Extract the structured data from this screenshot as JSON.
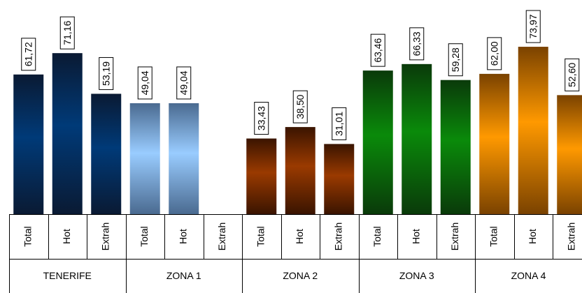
{
  "chart_data": {
    "type": "bar",
    "groups": [
      {
        "name": "TENERIFE",
        "color_dark": "#0a1a33",
        "color_light": "#003a78",
        "bars": [
          {
            "category": "Total",
            "value": 61.72,
            "label": "61,72"
          },
          {
            "category": "Hot",
            "value": 71.16,
            "label": "71,16"
          },
          {
            "category": "Extrah",
            "value": 53.19,
            "label": "53,19"
          }
        ]
      },
      {
        "name": "ZONA 1",
        "color_dark": "#4a6a90",
        "color_light": "#99ccff",
        "bars": [
          {
            "category": "Total",
            "value": 49.04,
            "label": "49,04"
          },
          {
            "category": "Hot",
            "value": 49.04,
            "label": "49,04"
          },
          {
            "category": "Extrah",
            "value": null,
            "label": ""
          }
        ]
      },
      {
        "name": "ZONA 2",
        "color_dark": "#3a1400",
        "color_light": "#9a3a00",
        "bars": [
          {
            "category": "Total",
            "value": 33.43,
            "label": "33,43"
          },
          {
            "category": "Hot",
            "value": 38.5,
            "label": "38,50"
          },
          {
            "category": "Extrah",
            "value": 31.01,
            "label": "31,01"
          }
        ]
      },
      {
        "name": "ZONA 3",
        "color_dark": "#0a3a0a",
        "color_light": "#0a8a0a",
        "bars": [
          {
            "category": "Total",
            "value": 63.46,
            "label": "63,46"
          },
          {
            "category": "Hot",
            "value": 66.33,
            "label": "66,33"
          },
          {
            "category": "Extrah",
            "value": 59.28,
            "label": "59,28"
          }
        ]
      },
      {
        "name": "ZONA 4",
        "color_dark": "#7a4200",
        "color_light": "#ff9900",
        "bars": [
          {
            "category": "Total",
            "value": 62.0,
            "label": "62,00"
          },
          {
            "category": "Hot",
            "value": 73.97,
            "label": "73,97"
          },
          {
            "category": "Extrah",
            "value": 52.6,
            "label": "52,60"
          }
        ]
      }
    ],
    "ylim": [
      0,
      80
    ],
    "grid": false,
    "legend": "none"
  }
}
